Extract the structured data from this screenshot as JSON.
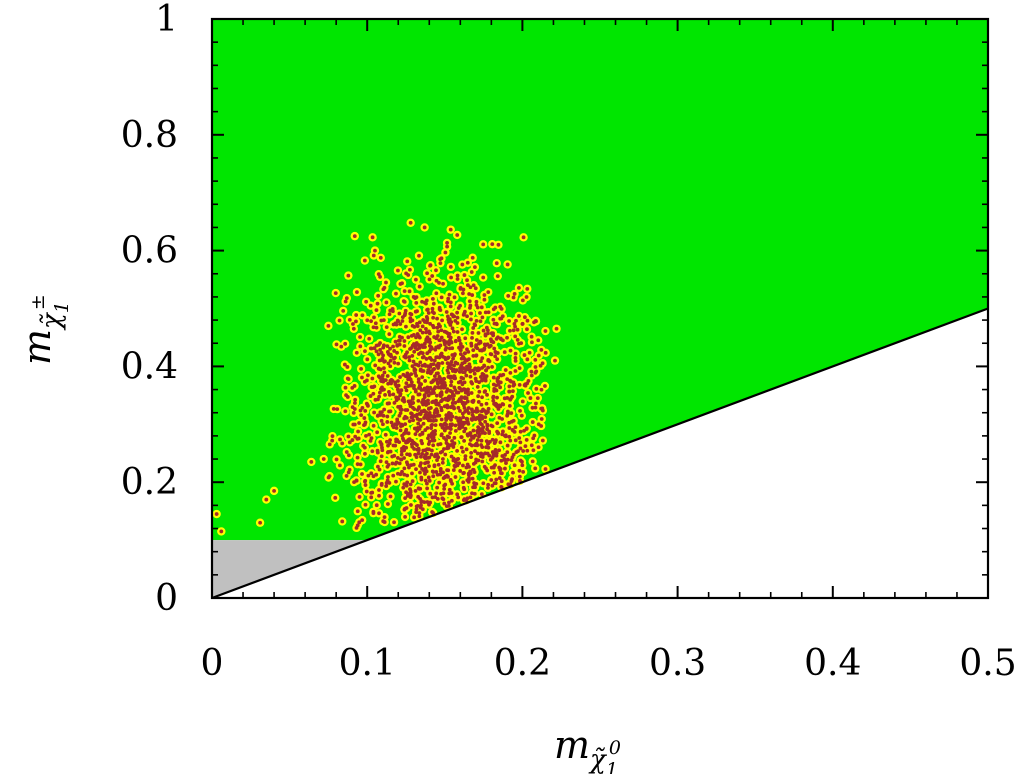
{
  "chart_data": {
    "type": "scatter",
    "title": "",
    "xlabel": "m",
    "xlabel_sub": "χ̃",
    "xlabel_subsub": "1",
    "xlabel_sup": "0",
    "ylabel": "m",
    "ylabel_sub": "χ̃",
    "ylabel_subsub": "1",
    "ylabel_sup": "±",
    "xlim": [
      0,
      0.5
    ],
    "ylim": [
      0,
      1
    ],
    "x_ticks": [
      0,
      0.1,
      0.2,
      0.3,
      0.4,
      0.5
    ],
    "x_tick_labels": [
      "0",
      "0.1",
      "0.2",
      "0.3",
      "0.4",
      "0.5"
    ],
    "y_ticks": [
      0,
      0.2,
      0.4,
      0.6,
      0.8,
      1
    ],
    "y_tick_labels": [
      "0",
      "0.2",
      "0.4",
      "0.6",
      "0.8",
      "1"
    ],
    "grid": false,
    "regions": [
      {
        "color": "#00e600",
        "polygon": [
          [
            0,
            0.1
          ],
          [
            0,
            1
          ],
          [
            0.5,
            1
          ],
          [
            0.5,
            0.5
          ],
          [
            0.1,
            0.1
          ]
        ]
      },
      {
        "color": "#c0c0c0",
        "polygon": [
          [
            0,
            0
          ],
          [
            0,
            0.1
          ],
          [
            0.1,
            0.1
          ]
        ]
      }
    ],
    "boundary_line": {
      "color": "#000000",
      "from": [
        0,
        0
      ],
      "to": [
        0.5,
        0.5
      ]
    },
    "scatter_cloud": {
      "center": [
        0.15,
        0.34
      ],
      "inner_color": "#a52a2a",
      "outer_color": "#ffff00",
      "x_range": [
        0.075,
        0.215
      ],
      "y_range": [
        0.1,
        0.65
      ]
    },
    "outliers": [
      [
        0.003,
        0.145
      ],
      [
        0.006,
        0.115
      ],
      [
        0.031,
        0.13
      ],
      [
        0.035,
        0.17
      ],
      [
        0.04,
        0.185
      ],
      [
        0.064,
        0.235
      ],
      [
        0.072,
        0.24
      ],
      [
        0.075,
        0.47
      ],
      [
        0.092,
        0.625
      ],
      [
        0.105,
        0.6
      ],
      [
        0.128,
        0.648
      ],
      [
        0.137,
        0.64
      ],
      [
        0.158,
        0.627
      ],
      [
        0.222,
        0.465
      ],
      [
        0.221,
        0.41
      ]
    ]
  }
}
